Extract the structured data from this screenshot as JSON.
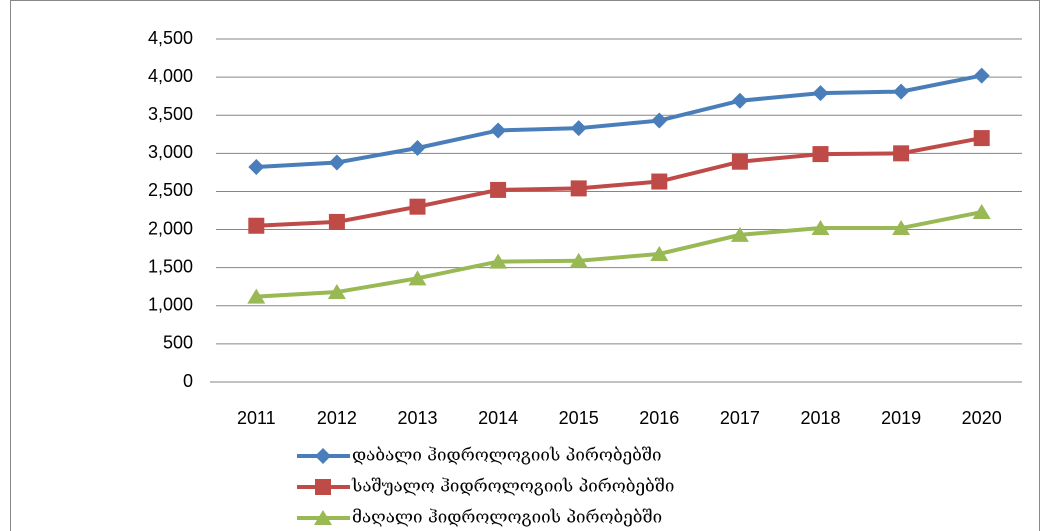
{
  "chart_data": {
    "type": "line",
    "categories": [
      "2011",
      "2012",
      "2013",
      "2014",
      "2015",
      "2016",
      "2017",
      "2018",
      "2019",
      "2020"
    ],
    "series": [
      {
        "name": "დაბალი ჰიდროლოგიის პირობებში",
        "color": "#4a7ebb",
        "marker": "diamond",
        "values": [
          2820,
          2880,
          3070,
          3300,
          3330,
          3430,
          3690,
          3790,
          3810,
          4020
        ]
      },
      {
        "name": "საშუალო ჰიდროლოგიის პირობებში",
        "color": "#be4b48",
        "marker": "square",
        "values": [
          2050,
          2100,
          2300,
          2520,
          2540,
          2630,
          2890,
          2990,
          3000,
          3200
        ]
      },
      {
        "name": "მაღალი ჰიდროლოგიის პირობებში",
        "color": "#98b954",
        "marker": "triangle",
        "values": [
          1120,
          1180,
          1360,
          1580,
          1590,
          1680,
          1930,
          2020,
          2020,
          2230
        ]
      }
    ],
    "ylim": [
      0,
      4500
    ],
    "yticks": [
      0,
      500,
      {
        "value": 1000,
        "label": "1,000"
      },
      {
        "value": 1500,
        "label": "1,500"
      },
      {
        "value": 2000,
        "label": "2,000"
      },
      {
        "value": 2500,
        "label": "2,500"
      },
      {
        "value": 3000,
        "label": "3,000"
      },
      {
        "value": 3500,
        "label": "3,500"
      },
      {
        "value": 4000,
        "label": "4,000"
      },
      {
        "value": 4500,
        "label": "4,500"
      }
    ],
    "grid": true,
    "legend": "bottom-left"
  }
}
